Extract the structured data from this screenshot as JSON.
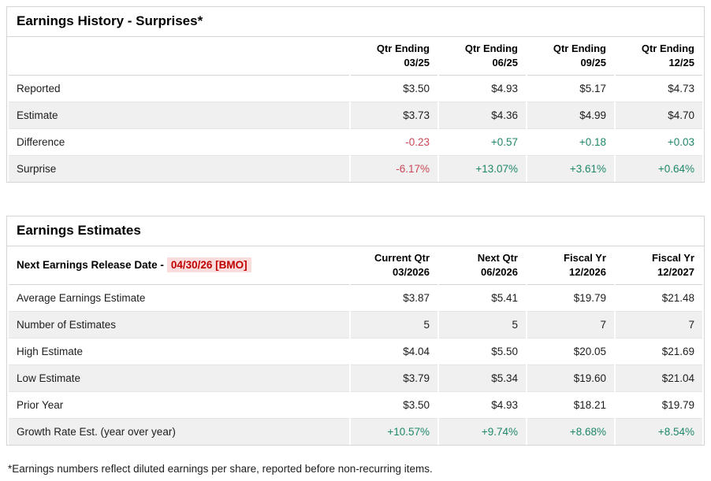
{
  "colors": {
    "positive_green": "#1f8769",
    "negative_red": "#ca4754",
    "release_date_red": "#c00000",
    "release_date_highlight": "#fbdcdc",
    "zebra_row": "#f0f0f0",
    "border": "#d4d4d4"
  },
  "history": {
    "title": "Earnings History - Surprises*",
    "columns": [
      "Qtr Ending\n03/25",
      "Qtr Ending\n06/25",
      "Qtr Ending\n09/25",
      "Qtr Ending\n12/25"
    ],
    "rows": [
      {
        "label": "Reported",
        "values": [
          {
            "t": "$3.50",
            "tone": ""
          },
          {
            "t": "$4.93",
            "tone": ""
          },
          {
            "t": "$5.17",
            "tone": ""
          },
          {
            "t": "$4.73",
            "tone": ""
          }
        ]
      },
      {
        "label": "Estimate",
        "values": [
          {
            "t": "$3.73",
            "tone": ""
          },
          {
            "t": "$4.36",
            "tone": ""
          },
          {
            "t": "$4.99",
            "tone": ""
          },
          {
            "t": "$4.70",
            "tone": ""
          }
        ]
      },
      {
        "label": "Difference",
        "values": [
          {
            "t": "-0.23",
            "tone": "neg"
          },
          {
            "t": "+0.57",
            "tone": "pos"
          },
          {
            "t": "+0.18",
            "tone": "pos"
          },
          {
            "t": "+0.03",
            "tone": "pos"
          }
        ]
      },
      {
        "label": "Surprise",
        "values": [
          {
            "t": "-6.17%",
            "tone": "neg"
          },
          {
            "t": "+13.07%",
            "tone": "pos"
          },
          {
            "t": "+3.61%",
            "tone": "pos"
          },
          {
            "t": "+0.64%",
            "tone": "pos"
          }
        ]
      }
    ]
  },
  "estimates": {
    "title": "Earnings Estimates",
    "release_label": "Next Earnings Release Date -",
    "release_date": "04/30/26 [BMO]",
    "columns": [
      "Current Qtr\n03/2026",
      "Next Qtr\n06/2026",
      "Fiscal Yr\n12/2026",
      "Fiscal Yr\n12/2027"
    ],
    "rows": [
      {
        "label": "Average Earnings Estimate",
        "values": [
          {
            "t": "$3.87",
            "tone": ""
          },
          {
            "t": "$5.41",
            "tone": ""
          },
          {
            "t": "$19.79",
            "tone": ""
          },
          {
            "t": "$21.48",
            "tone": ""
          }
        ]
      },
      {
        "label": "Number of Estimates",
        "values": [
          {
            "t": "5",
            "tone": ""
          },
          {
            "t": "5",
            "tone": ""
          },
          {
            "t": "7",
            "tone": ""
          },
          {
            "t": "7",
            "tone": ""
          }
        ]
      },
      {
        "label": "High Estimate",
        "values": [
          {
            "t": "$4.04",
            "tone": ""
          },
          {
            "t": "$5.50",
            "tone": ""
          },
          {
            "t": "$20.05",
            "tone": ""
          },
          {
            "t": "$21.69",
            "tone": ""
          }
        ]
      },
      {
        "label": "Low Estimate",
        "values": [
          {
            "t": "$3.79",
            "tone": ""
          },
          {
            "t": "$5.34",
            "tone": ""
          },
          {
            "t": "$19.60",
            "tone": ""
          },
          {
            "t": "$21.04",
            "tone": ""
          }
        ]
      },
      {
        "label": "Prior Year",
        "values": [
          {
            "t": "$3.50",
            "tone": ""
          },
          {
            "t": "$4.93",
            "tone": ""
          },
          {
            "t": "$18.21",
            "tone": ""
          },
          {
            "t": "$19.79",
            "tone": ""
          }
        ]
      },
      {
        "label": "Growth Rate Est. (year over year)",
        "values": [
          {
            "t": "+10.57%",
            "tone": "pos"
          },
          {
            "t": "+9.74%",
            "tone": "pos"
          },
          {
            "t": "+8.68%",
            "tone": "pos"
          },
          {
            "t": "+8.54%",
            "tone": "pos"
          }
        ]
      }
    ]
  },
  "footnote": "*Earnings numbers reflect diluted earnings per share, reported before non-recurring items."
}
